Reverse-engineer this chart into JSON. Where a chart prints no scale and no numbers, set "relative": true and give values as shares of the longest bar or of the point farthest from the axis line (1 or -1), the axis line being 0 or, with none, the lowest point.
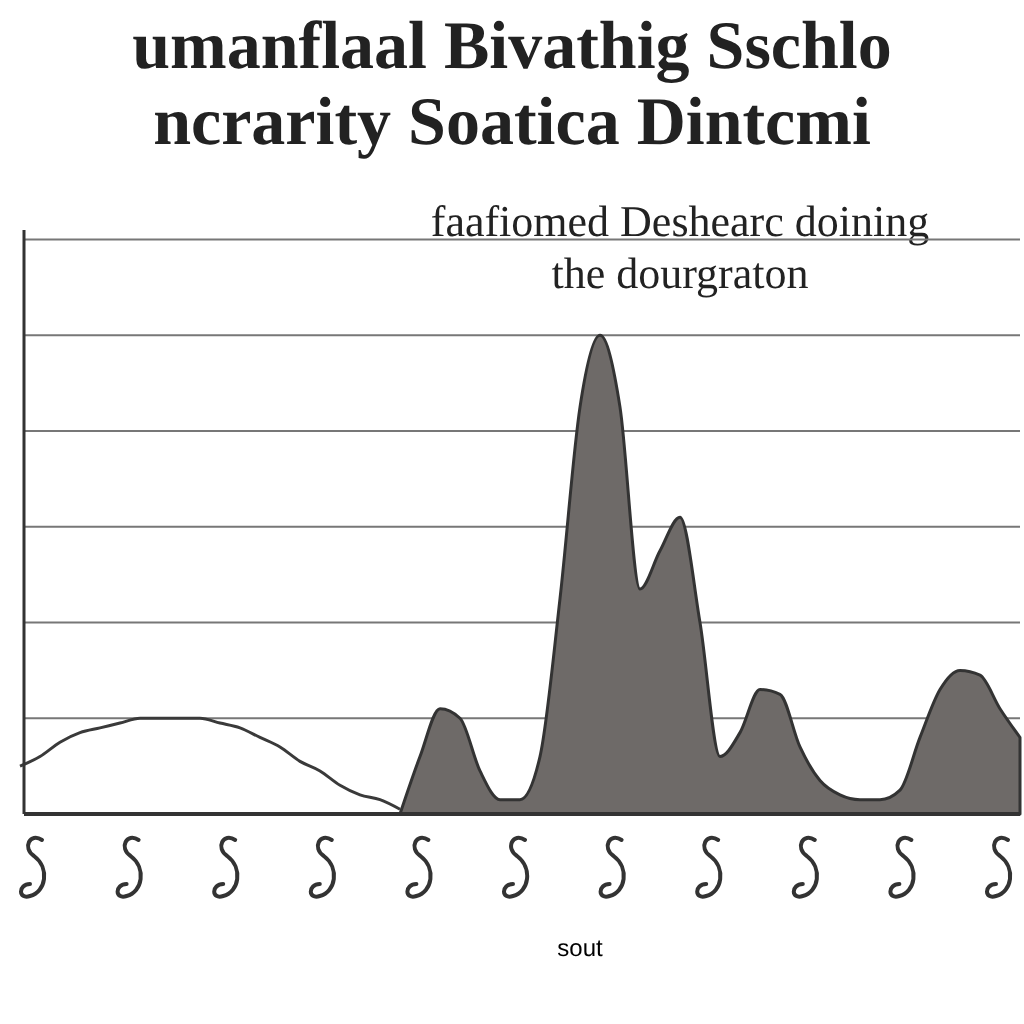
{
  "chart_data": {
    "type": "area",
    "title": [
      "umanflaal Bivathig Sschlo",
      "ncrarity Soatica Dintcmi"
    ],
    "subtitle": [
      "faafiomed Deshearc doining",
      "the dourgraton"
    ],
    "annotations": [
      "sout"
    ],
    "relative": true,
    "grid": "y",
    "categories": [
      null,
      null,
      null,
      null,
      null,
      null,
      null,
      null,
      null,
      null,
      null,
      null,
      null,
      null,
      null,
      null,
      null,
      null,
      null,
      null,
      null,
      null,
      null,
      null,
      null,
      null,
      null,
      null,
      null,
      null,
      null,
      null,
      null,
      null,
      null,
      null,
      null,
      null,
      null,
      null,
      null,
      null,
      null,
      null,
      null,
      null,
      null,
      null,
      null,
      null,
      null
    ],
    "series": [
      {
        "type": "line",
        "color": "#3a3a3a",
        "values": [
          0.1,
          0.12,
          0.15,
          0.17,
          0.18,
          0.19,
          0.2,
          0.2,
          0.2,
          0.2,
          0.19,
          0.18,
          0.16,
          0.14,
          0.11,
          0.09,
          0.06,
          0.04,
          0.03,
          0.01,
          null,
          null,
          null,
          null,
          null,
          null,
          null,
          null,
          null,
          null,
          null,
          null,
          null,
          null,
          null,
          null,
          null,
          null,
          null,
          null,
          null,
          null,
          null,
          null,
          null,
          null,
          null,
          null,
          null,
          null,
          null
        ]
      },
      {
        "type": "area",
        "color": "#6e6a68",
        "values": [
          null,
          null,
          null,
          null,
          null,
          null,
          null,
          null,
          null,
          null,
          null,
          null,
          null,
          null,
          null,
          null,
          null,
          null,
          null,
          0,
          0.12,
          0.22,
          0.2,
          0.09,
          0.03,
          0.03,
          0.12,
          0.45,
          0.85,
          1,
          0.85,
          0.47,
          0.55,
          0.62,
          0.4,
          0.12,
          0.17,
          0.26,
          0.25,
          0.14,
          0.07,
          0.04,
          0.03,
          0.03,
          0.05,
          0.16,
          0.26,
          0.3,
          0.29,
          0.22,
          0.16
        ]
      }
    ]
  }
}
